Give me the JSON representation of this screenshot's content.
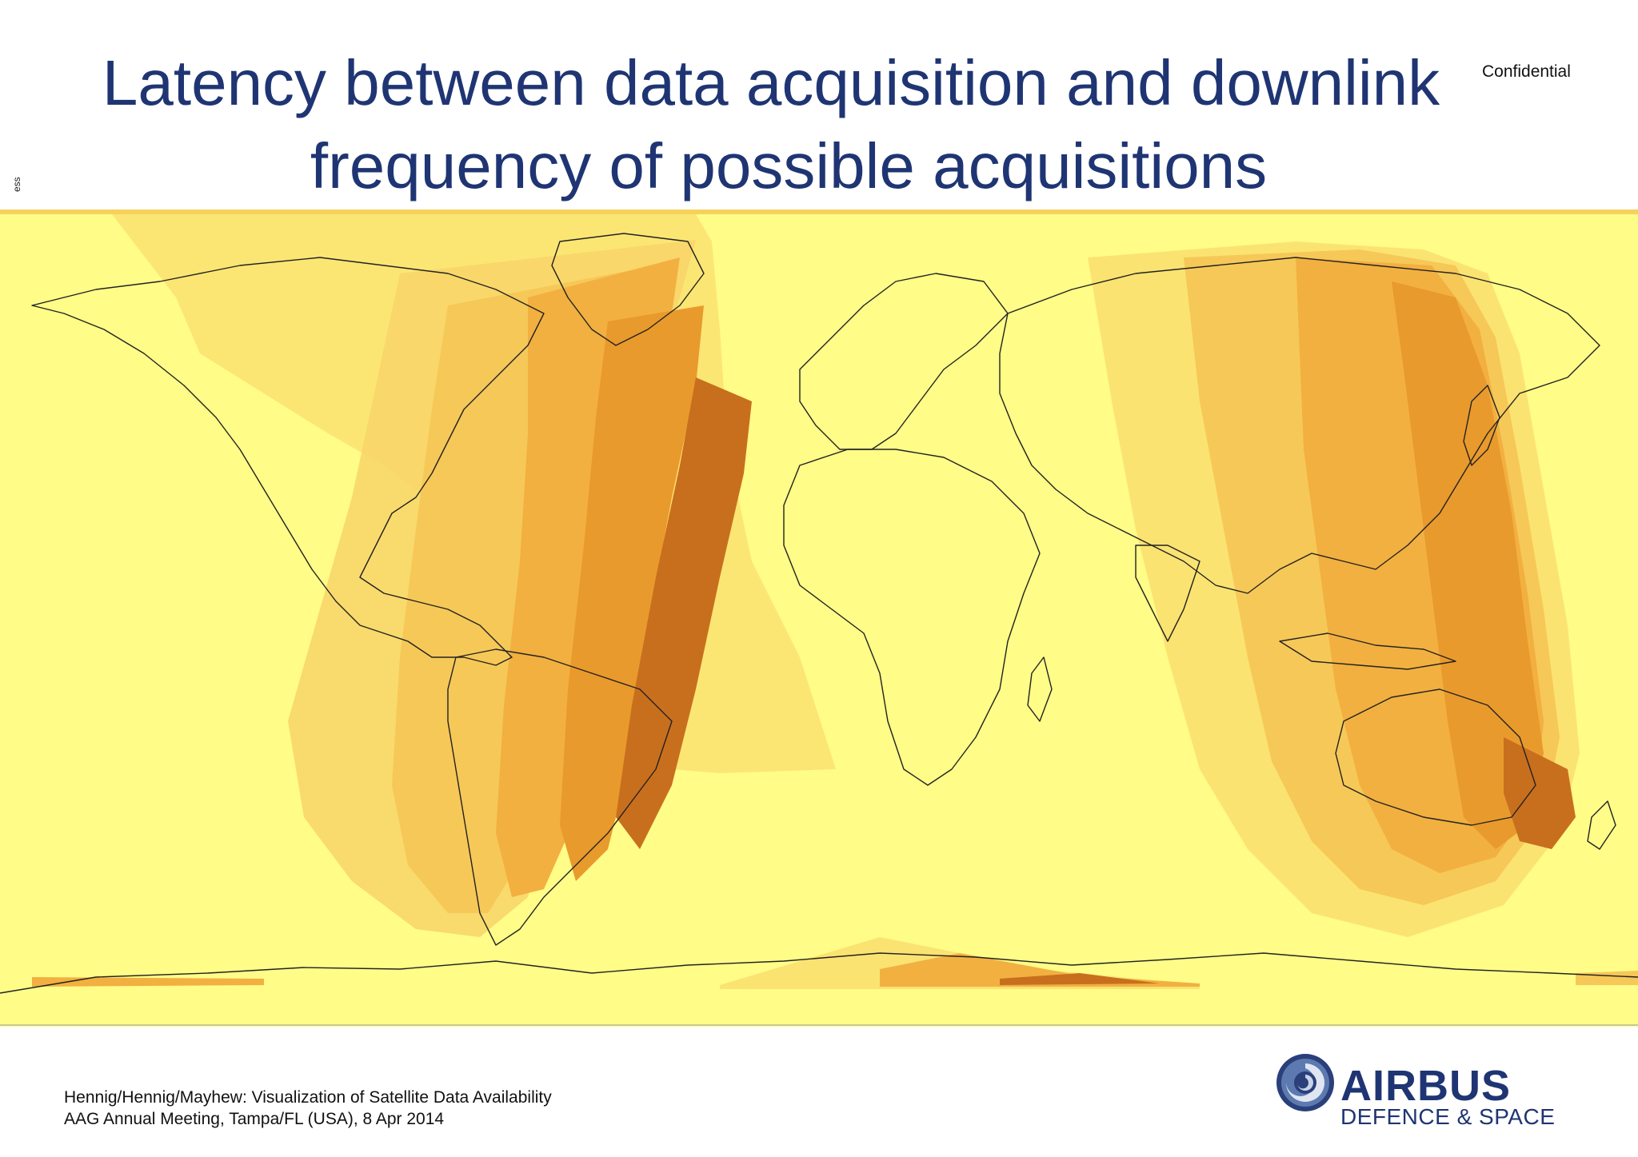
{
  "title": {
    "line1": "Latency between data acquisition and downlink",
    "line2": "frequency of possible acquisitions"
  },
  "confidential": "Confidential",
  "side_mark": "ess",
  "map": {
    "type": "world-map-heatmap",
    "colors": {
      "background": "#fffc88",
      "light": "#fbe372",
      "medium_light": "#f6c858",
      "medium": "#f2b040",
      "dark": "#e99a2c",
      "darkest": "#c86f1e",
      "coastline": "#222222"
    }
  },
  "footer": {
    "line1": "Hennig/Hennig/Mayhew: Visualization of Satellite Data Availability",
    "line2": "AAG Annual Meeting, Tampa/FL (USA), 8 Apr 2014"
  },
  "logo": {
    "brand": "AIRBUS",
    "division": "DEFENCE & SPACE",
    "brand_color": "#1f3573",
    "division_color": "#1f3573"
  }
}
